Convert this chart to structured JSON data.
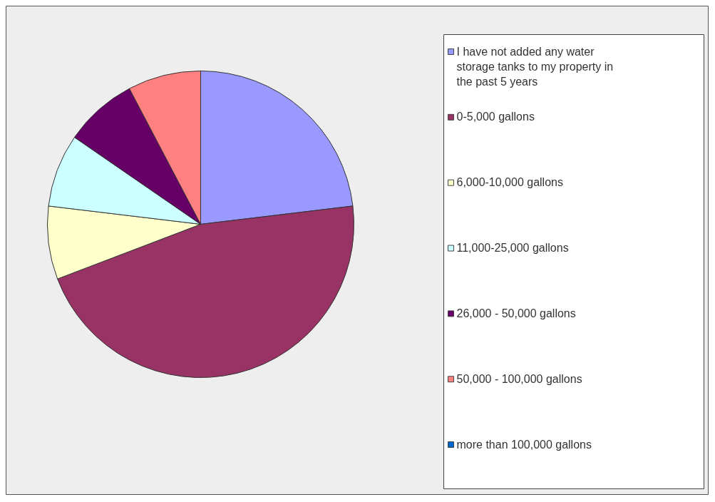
{
  "chart_data": {
    "type": "pie",
    "categories": [
      "I have not added any water storage tanks to my property in the past 5 years",
      "0-5,000 gallons",
      "6,000-10,000 gallons",
      "11,000-25,000 gallons",
      "26,000 - 50,000 gallons",
      "50,000 - 100,000 gallons",
      "more than 100,000 gallons"
    ],
    "values": [
      23.1,
      46.1,
      7.7,
      7.7,
      7.7,
      7.7,
      0
    ],
    "colors": [
      "#9999ff",
      "#993366",
      "#ffffcc",
      "#ccffff",
      "#660066",
      "#ff8080",
      "#0066cc"
    ],
    "legend": "right"
  }
}
